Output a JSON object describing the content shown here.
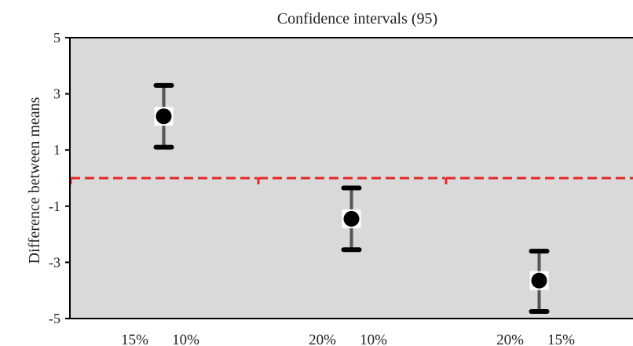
{
  "chart_data": {
    "type": "scatter",
    "title": "Confidence intervals (95)",
    "ylabel": "Difference between means",
    "xlabel": "",
    "ylim": [
      -5,
      5
    ],
    "yticks": [
      5,
      3,
      1,
      -1,
      -3,
      -5
    ],
    "ytick_labels": [
      "5",
      "3",
      "1",
      "-1",
      "-3",
      "-5"
    ],
    "reference_line": {
      "y": 0,
      "style": "dashed",
      "color": "#e8282b"
    },
    "categories": [
      {
        "labels": [
          "15%",
          "10%"
        ]
      },
      {
        "labels": [
          "20%",
          "10%"
        ]
      },
      {
        "labels": [
          "20%",
          "15%"
        ]
      }
    ],
    "points": [
      {
        "mean": 2.2,
        "lower": 1.1,
        "upper": 3.3
      },
      {
        "mean": -1.45,
        "lower": -2.55,
        "upper": -0.35
      },
      {
        "mean": -3.65,
        "lower": -4.75,
        "upper": -2.6
      }
    ],
    "background_color": "#d9d9d9",
    "point_color": "#000000",
    "errorbar_color": "#555555"
  }
}
